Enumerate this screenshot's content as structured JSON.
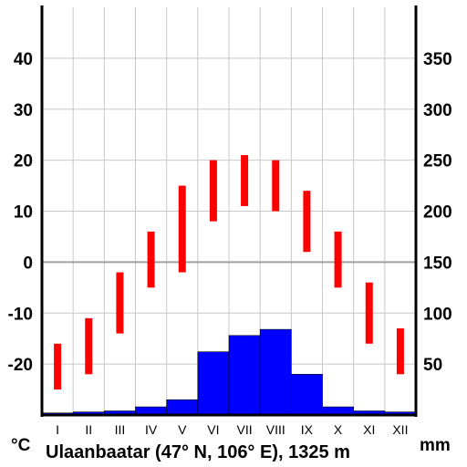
{
  "chart_data": {
    "type": "bar",
    "title": "Ulaanbaatar (47° N, 106° E), 1325 m",
    "categories": [
      "I",
      "II",
      "III",
      "IV",
      "V",
      "VI",
      "VII",
      "VIII",
      "IX",
      "X",
      "XI",
      "XII"
    ],
    "temperature": {
      "unit": "°C",
      "ylim": [
        -30,
        50
      ],
      "ticks": [
        -20,
        -10,
        0,
        10,
        20,
        30,
        40
      ],
      "max": [
        -16,
        -11,
        -2,
        6,
        15,
        20,
        21,
        20,
        14,
        6,
        -4,
        -13
      ],
      "min": [
        -25,
        -22,
        -14,
        -5,
        -2,
        8,
        11,
        10,
        2,
        -5,
        -16,
        -22
      ],
      "color": "#ff0000"
    },
    "precipitation": {
      "unit": "mm",
      "ylim": [
        0,
        400
      ],
      "ticks": [
        50,
        100,
        150,
        200,
        250,
        300,
        350
      ],
      "values": [
        2,
        3,
        4,
        8,
        15,
        62,
        78,
        84,
        40,
        8,
        4,
        3
      ],
      "color": "#0000ff"
    },
    "grid": true,
    "zero_line": 0
  }
}
